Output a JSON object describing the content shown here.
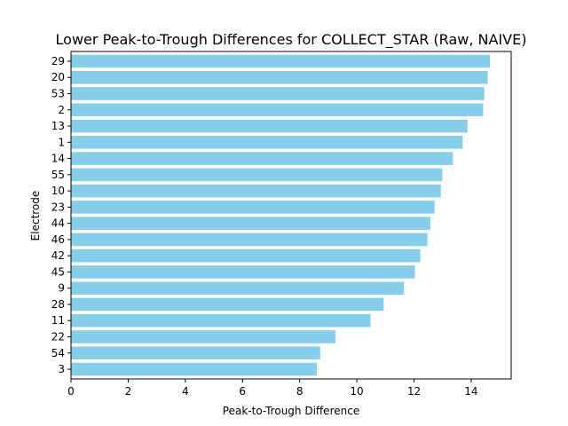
{
  "chart_data": {
    "type": "bar",
    "orientation": "horizontal",
    "title": "Lower Peak-to-Trough Differences for COLLECT_STAR (Raw, NAIVE)",
    "xlabel": "Peak-to-Trough Difference",
    "ylabel": "Electrode",
    "xlim": [
      0,
      15.4
    ],
    "xticks": [
      0,
      2,
      4,
      6,
      8,
      10,
      12,
      14
    ],
    "grid": false,
    "bar_color": "#87ceeb",
    "categories": [
      "29",
      "20",
      "53",
      "2",
      "13",
      "1",
      "14",
      "55",
      "10",
      "23",
      "44",
      "46",
      "42",
      "45",
      "9",
      "28",
      "11",
      "22",
      "54",
      "3"
    ],
    "values": [
      14.66,
      14.58,
      14.46,
      14.42,
      13.87,
      13.7,
      13.36,
      12.99,
      12.94,
      12.72,
      12.57,
      12.47,
      12.22,
      12.03,
      11.65,
      10.94,
      10.48,
      9.25,
      8.72,
      8.6
    ]
  }
}
